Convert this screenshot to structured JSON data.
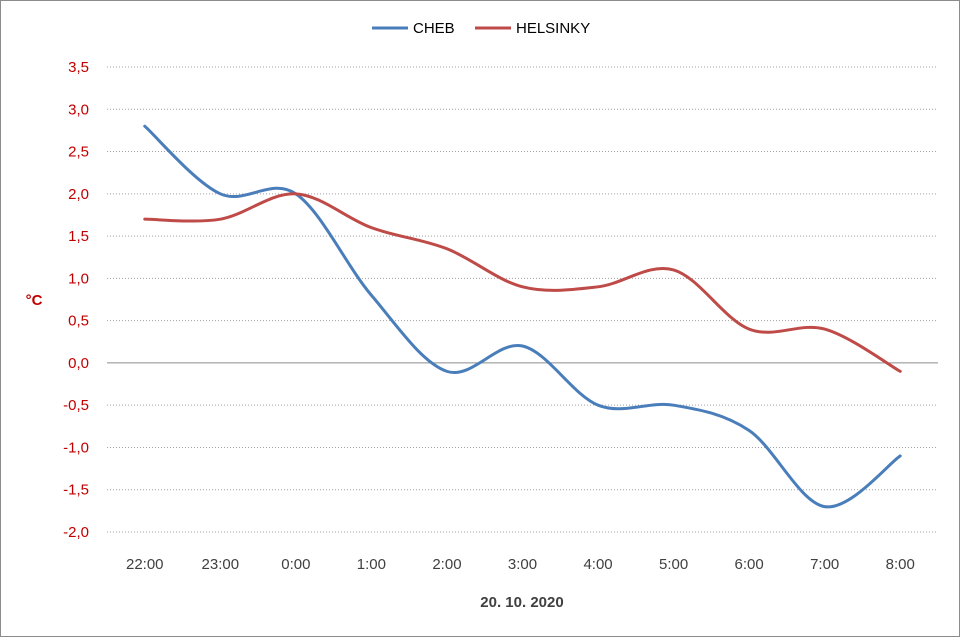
{
  "chart_data": {
    "type": "line",
    "title": "",
    "xlabel": "20. 10. 2020",
    "ylabel": "°C",
    "categories": [
      "22:00",
      "23:00",
      "0:00",
      "1:00",
      "2:00",
      "3:00",
      "4:00",
      "5:00",
      "6:00",
      "7:00",
      "8:00"
    ],
    "y_ticks": [
      "3,5",
      "3,0",
      "2,5",
      "2,0",
      "1,5",
      "1,0",
      "0,5",
      "0,0",
      "-0,5",
      "-1,0",
      "-1,5",
      "-2,0"
    ],
    "ylim": [
      -2.0,
      3.5
    ],
    "grid": true,
    "legend_position": "top",
    "series": [
      {
        "name": "CHEB",
        "color": "#4a7ebb",
        "values": [
          2.8,
          2.0,
          2.0,
          0.8,
          -0.1,
          0.2,
          -0.5,
          -0.5,
          -0.8,
          -1.7,
          -1.1
        ]
      },
      {
        "name": "HELSINKY",
        "color": "#be4b48",
        "values": [
          1.7,
          1.7,
          2.0,
          1.6,
          1.35,
          0.9,
          0.9,
          1.1,
          0.4,
          0.4,
          -0.1
        ]
      }
    ]
  }
}
